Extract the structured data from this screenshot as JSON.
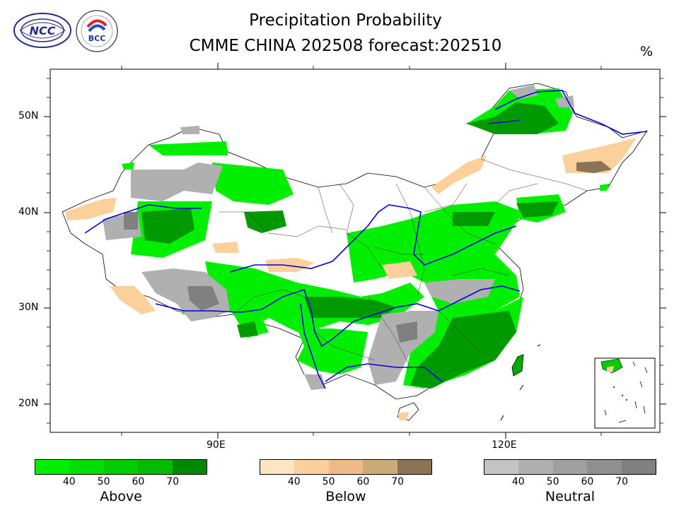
{
  "title": "Precipitation Probability",
  "subtitle": "CMME CHINA 202508 forecast:202510",
  "unit": "%",
  "logos": [
    {
      "name": "NCC",
      "text": "NCC"
    },
    {
      "name": "BCC",
      "text": "BCC"
    }
  ],
  "axes": {
    "lat_labels": [
      "50N",
      "40N",
      "30N",
      "20N"
    ],
    "lon_labels": [
      "90E",
      "120E"
    ]
  },
  "legends": [
    {
      "label": "Above",
      "ticks": [
        "40",
        "50",
        "60",
        "70"
      ],
      "colors": [
        "#00ee00",
        "#00dd00",
        "#00cc00",
        "#00bb00",
        "#008800"
      ]
    },
    {
      "label": "Below",
      "ticks": [
        "40",
        "50",
        "60",
        "70"
      ],
      "colors": [
        "#ffe4c0",
        "#fcd09a",
        "#eebb88",
        "#ccaa77",
        "#8b7355"
      ]
    },
    {
      "label": "Neutral",
      "ticks": [
        "40",
        "50",
        "60",
        "70"
      ],
      "colors": [
        "#c4c4c4",
        "#b0b0b0",
        "#a0a0a0",
        "#909090",
        "#808080"
      ]
    }
  ]
}
